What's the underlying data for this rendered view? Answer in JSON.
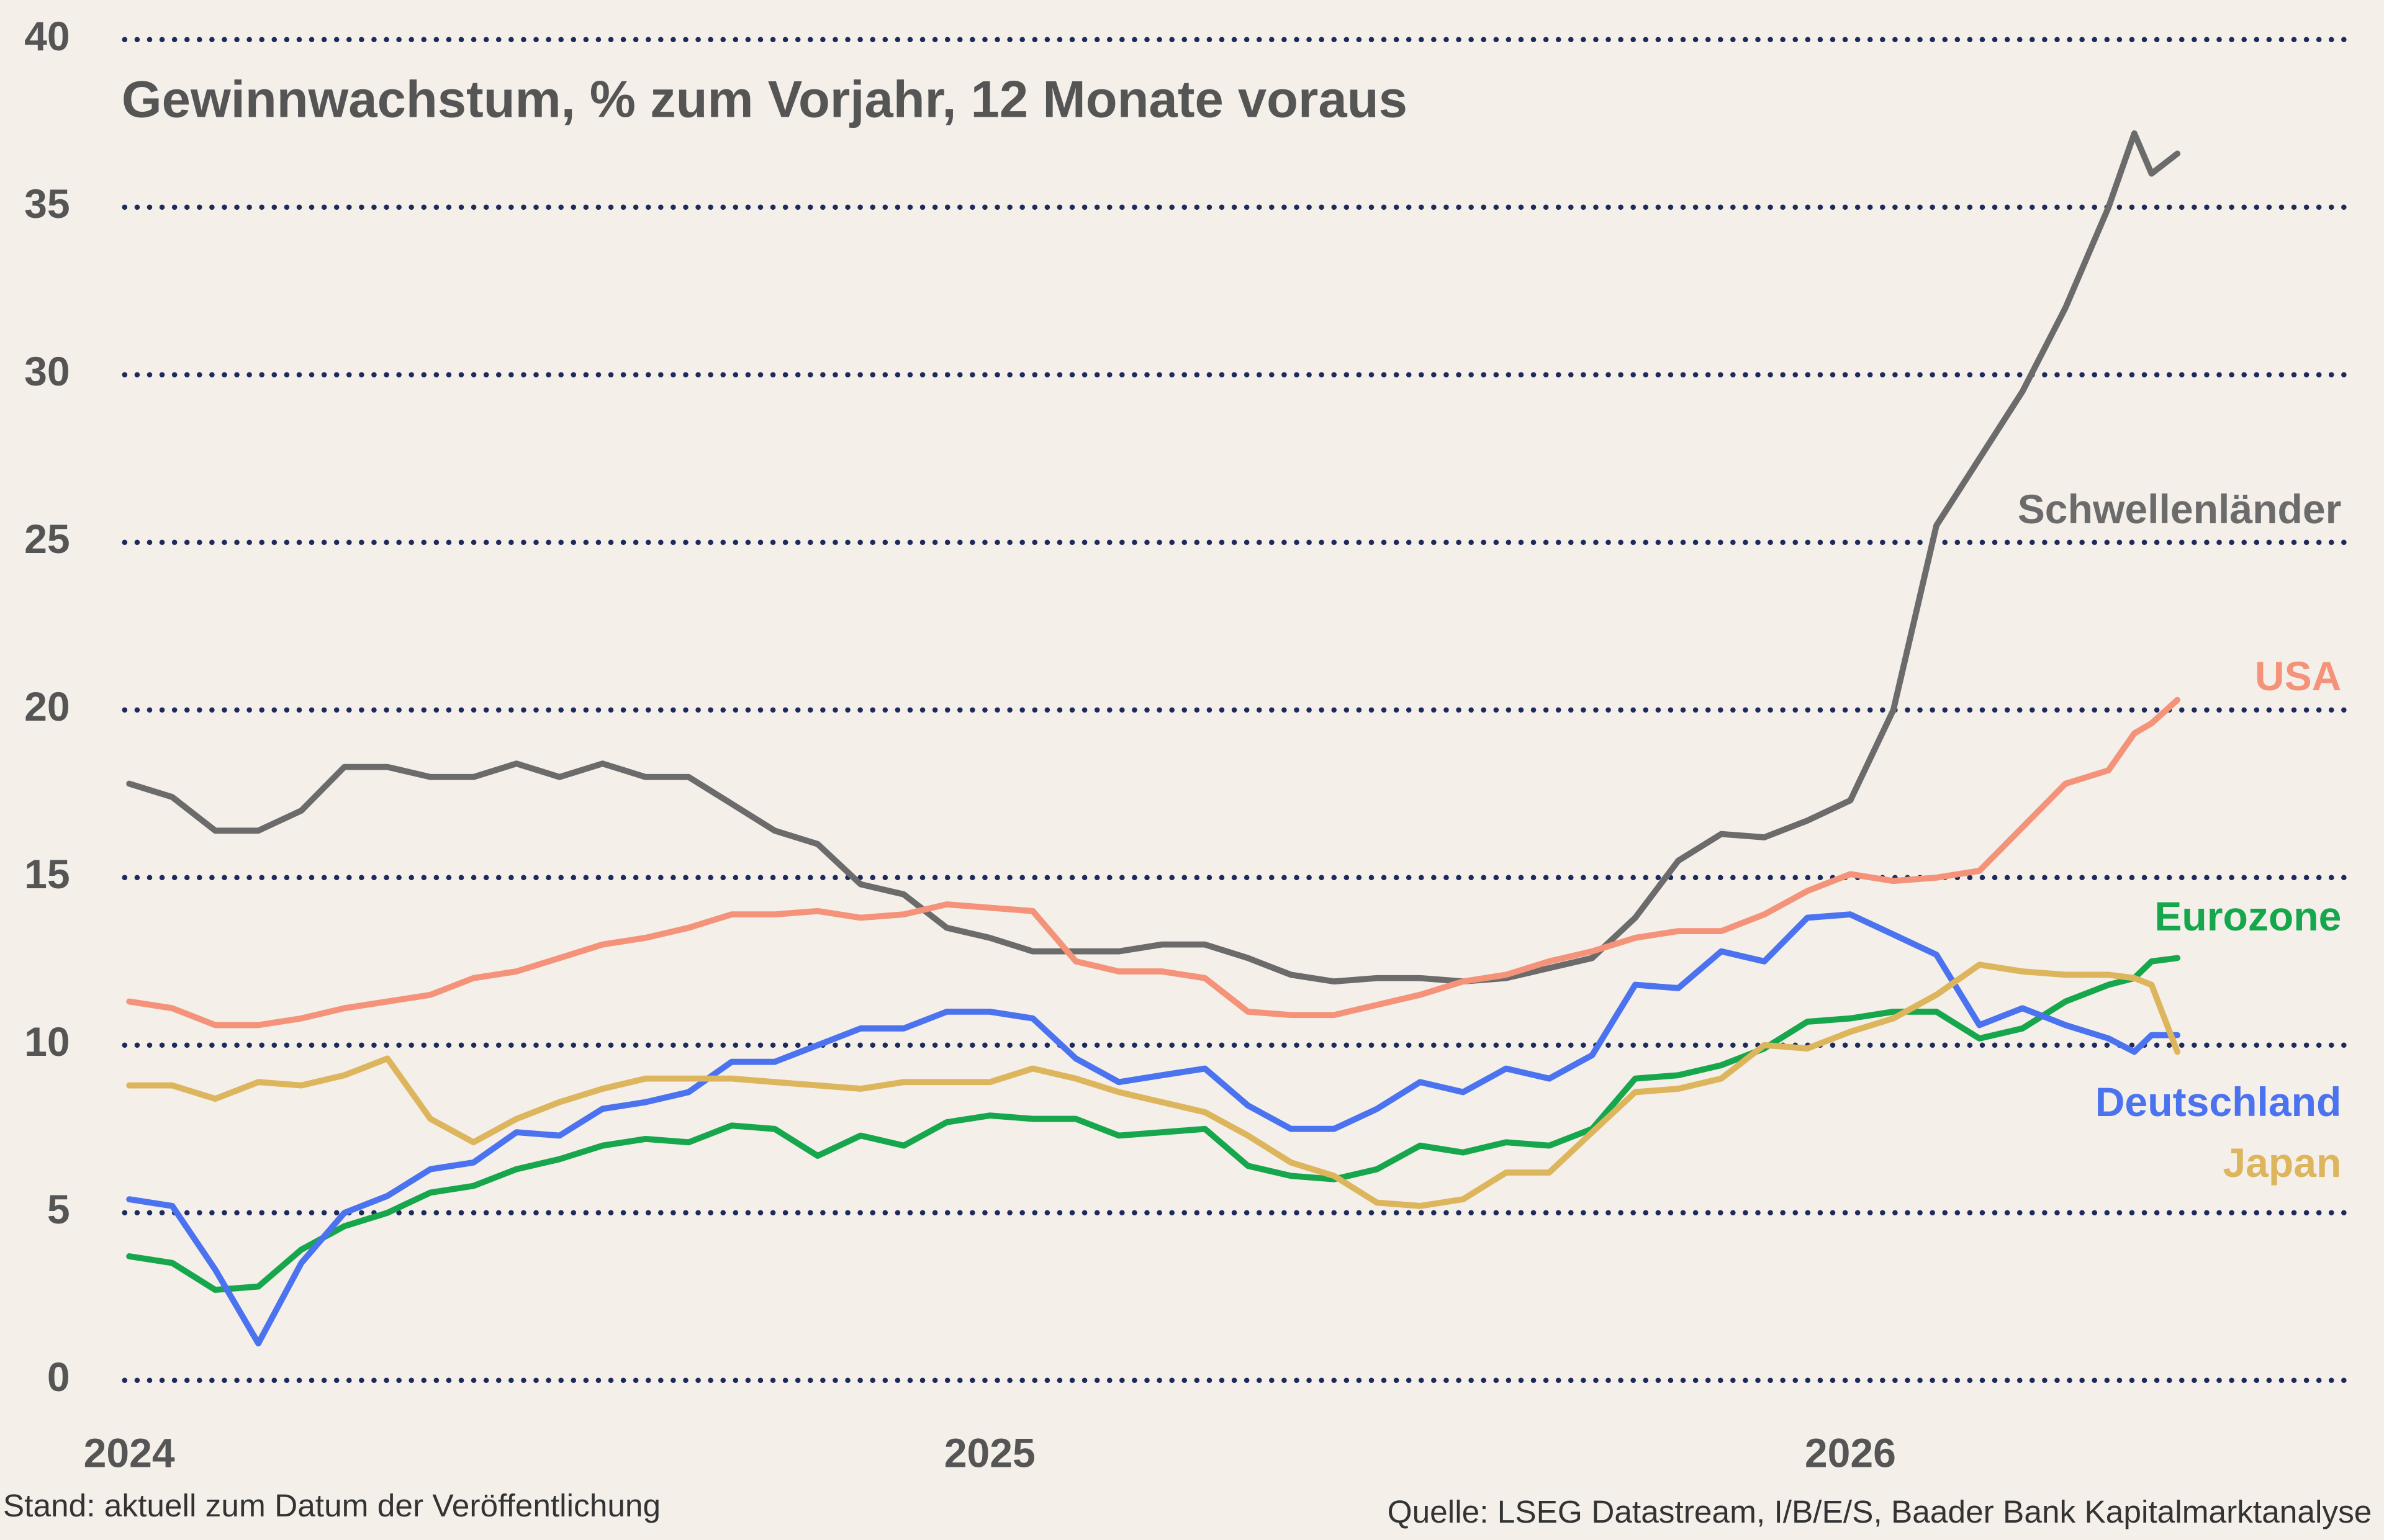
{
  "chart_data": {
    "type": "line",
    "title": "Gewinnwachstum, % zum Vorjahr, 12 Monate voraus",
    "note": "Stand: aktuell zum Datum der Veröffentlichung",
    "source": "Quelle: LSEG Datastream, I/B/E/S, Baader Bank Kapitalmarktanalyse",
    "xlim": [
      2024,
      2026.57
    ],
    "xticks": [
      2024,
      2025,
      2026
    ],
    "ylim": [
      0,
      40
    ],
    "yticks": [
      0,
      5,
      10,
      15,
      20,
      25,
      30,
      35,
      40
    ],
    "grid": true,
    "x": [
      2024.0,
      2024.05,
      2024.1,
      2024.15,
      2024.2,
      2024.25,
      2024.3,
      2024.35,
      2024.4,
      2024.45,
      2024.5,
      2024.55,
      2024.6,
      2024.65,
      2024.7,
      2024.75,
      2024.8,
      2024.85,
      2024.9,
      2024.95,
      2025.0,
      2025.05,
      2025.1,
      2025.15,
      2025.2,
      2025.25,
      2025.3,
      2025.35,
      2025.4,
      2025.45,
      2025.5,
      2025.55,
      2025.6,
      2025.65,
      2025.7,
      2025.75,
      2025.8,
      2025.85,
      2025.9,
      2025.95,
      2026.0,
      2026.05,
      2026.1,
      2026.15,
      2026.2,
      2026.25,
      2026.3,
      2026.33,
      2026.35,
      2026.38
    ],
    "series": [
      {
        "name": "Schwellenländer",
        "color": "#6b6b6b",
        "values": [
          17.8,
          17.4,
          16.4,
          16.4,
          17.0,
          18.3,
          18.3,
          18.0,
          18.0,
          18.4,
          18.0,
          18.4,
          18.0,
          18.0,
          17.2,
          16.4,
          16.0,
          14.8,
          14.5,
          13.5,
          13.2,
          12.8,
          12.8,
          12.8,
          13.0,
          13.0,
          12.6,
          12.1,
          11.9,
          12.0,
          12.0,
          11.9,
          12.0,
          12.3,
          12.6,
          13.8,
          15.5,
          16.3,
          16.2,
          16.7,
          17.3,
          20.0,
          25.5,
          27.5,
          29.5,
          32.0,
          35.0,
          37.2,
          36.0,
          36.6
        ]
      },
      {
        "name": "USA",
        "color": "#f4937a",
        "values": [
          11.3,
          11.1,
          10.6,
          10.6,
          10.8,
          11.1,
          11.3,
          11.5,
          12.0,
          12.2,
          12.6,
          13.0,
          13.2,
          13.5,
          13.9,
          13.9,
          14.0,
          13.8,
          13.9,
          14.2,
          14.1,
          14.0,
          12.5,
          12.2,
          12.2,
          12.0,
          11.0,
          10.9,
          10.9,
          11.2,
          11.5,
          11.9,
          12.1,
          12.5,
          12.8,
          13.2,
          13.4,
          13.4,
          13.9,
          14.6,
          15.1,
          14.9,
          15.0,
          15.2,
          16.5,
          17.8,
          18.2,
          19.3,
          19.6,
          20.3
        ]
      },
      {
        "name": "Eurozone",
        "color": "#16a64c",
        "values": [
          3.7,
          3.5,
          2.7,
          2.8,
          3.9,
          4.6,
          5.0,
          5.6,
          5.8,
          6.3,
          6.6,
          7.0,
          7.2,
          7.1,
          7.6,
          7.5,
          6.7,
          7.3,
          7.0,
          7.7,
          7.9,
          7.8,
          7.8,
          7.3,
          7.4,
          7.5,
          6.4,
          6.1,
          6.0,
          6.3,
          7.0,
          6.8,
          7.1,
          7.0,
          7.5,
          9.0,
          9.1,
          9.4,
          9.9,
          10.7,
          10.8,
          11.0,
          11.0,
          10.2,
          10.5,
          11.3,
          11.8,
          12.0,
          12.5,
          12.6
        ]
      },
      {
        "name": "Deutschland",
        "color": "#4b72ef",
        "values": [
          5.4,
          5.2,
          3.3,
          1.1,
          3.5,
          5.0,
          5.5,
          6.3,
          6.5,
          7.4,
          7.3,
          8.1,
          8.3,
          8.6,
          9.5,
          9.5,
          10.0,
          10.5,
          10.5,
          11.0,
          11.0,
          10.8,
          9.6,
          8.9,
          9.1,
          9.3,
          8.2,
          7.5,
          7.5,
          8.1,
          8.9,
          8.6,
          9.3,
          9.0,
          9.7,
          11.8,
          11.7,
          12.8,
          12.5,
          13.8,
          13.9,
          13.3,
          12.7,
          10.6,
          11.1,
          10.6,
          10.2,
          9.8,
          10.3,
          10.3
        ]
      },
      {
        "name": "Japan",
        "color": "#dcb55c",
        "values": [
          8.8,
          8.8,
          8.4,
          8.9,
          8.8,
          9.1,
          9.6,
          7.8,
          7.1,
          7.8,
          8.3,
          8.7,
          9.0,
          9.0,
          9.0,
          8.9,
          8.8,
          8.7,
          8.9,
          8.9,
          8.9,
          9.3,
          9.0,
          8.6,
          8.3,
          8.0,
          7.3,
          6.5,
          6.1,
          5.3,
          5.2,
          5.4,
          6.2,
          6.2,
          7.4,
          8.6,
          8.7,
          9.0,
          10.0,
          9.9,
          10.4,
          10.8,
          11.5,
          12.4,
          12.2,
          12.1,
          12.1,
          12.0,
          11.8,
          9.8
        ]
      }
    ]
  }
}
